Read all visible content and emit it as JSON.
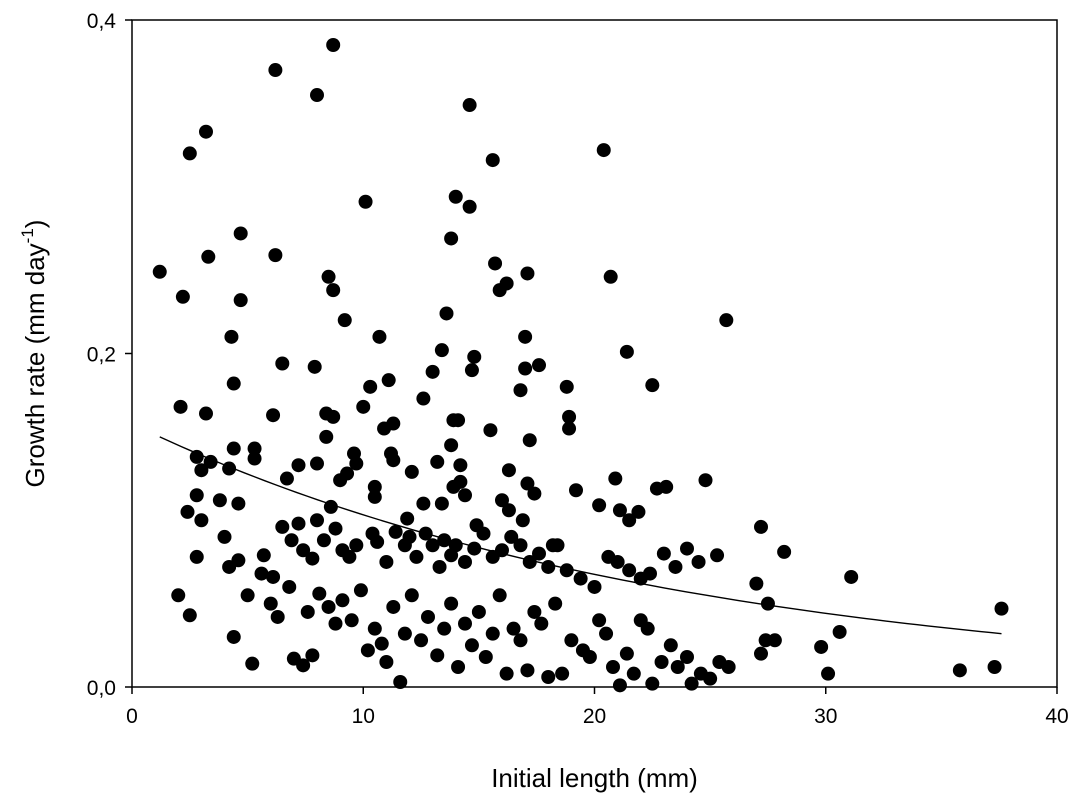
{
  "chart_data": {
    "type": "scatter",
    "title": "",
    "xlabel": "Initial length (mm)",
    "ylabel_main": "Growth rate (mm day",
    "ylabel_sup": "-1",
    "ylabel_close": ")",
    "xlim": [
      0,
      40
    ],
    "ylim": [
      0,
      0.4
    ],
    "x_ticks": [
      {
        "value": 0,
        "label": "0"
      },
      {
        "value": 10,
        "label": "10"
      },
      {
        "value": 20,
        "label": "20"
      },
      {
        "value": 30,
        "label": "30"
      },
      {
        "value": 40,
        "label": "40"
      }
    ],
    "y_ticks": [
      {
        "value": 0,
        "label": "0,0"
      },
      {
        "value": 0.2,
        "label": "0,2"
      },
      {
        "value": 0.4,
        "label": "0,4"
      }
    ],
    "grid": false,
    "legend": "none",
    "marker_color": "#000000",
    "series": [
      {
        "marker": "filled-circle",
        "points": [
          [
            1.2,
            0.249
          ],
          [
            2.2,
            0.234
          ],
          [
            2.5,
            0.32
          ],
          [
            3.2,
            0.333
          ],
          [
            3.3,
            0.258
          ],
          [
            2.1,
            0.168
          ],
          [
            3.2,
            0.164
          ],
          [
            4.7,
            0.272
          ],
          [
            4.7,
            0.232
          ],
          [
            4.3,
            0.21
          ],
          [
            4.4,
            0.182
          ],
          [
            6.2,
            0.37
          ],
          [
            6.2,
            0.259
          ],
          [
            6.1,
            0.163
          ],
          [
            6.5,
            0.194
          ],
          [
            8.0,
            0.355
          ],
          [
            8.7,
            0.385
          ],
          [
            8.5,
            0.246
          ],
          [
            8.7,
            0.238
          ],
          [
            9.2,
            0.22
          ],
          [
            7.9,
            0.192
          ],
          [
            8.4,
            0.164
          ],
          [
            8.7,
            0.162
          ],
          [
            10.1,
            0.291
          ],
          [
            10.0,
            0.168
          ],
          [
            10.3,
            0.18
          ],
          [
            10.7,
            0.21
          ],
          [
            11.1,
            0.184
          ],
          [
            11.3,
            0.158
          ],
          [
            10.9,
            0.155
          ],
          [
            12.6,
            0.173
          ],
          [
            13.0,
            0.189
          ],
          [
            13.4,
            0.202
          ],
          [
            13.6,
            0.224
          ],
          [
            13.8,
            0.269
          ],
          [
            14.0,
            0.294
          ],
          [
            14.6,
            0.288
          ],
          [
            14.6,
            0.349
          ],
          [
            14.7,
            0.19
          ],
          [
            14.8,
            0.198
          ],
          [
            13.9,
            0.16
          ],
          [
            14.1,
            0.16
          ],
          [
            15.6,
            0.316
          ],
          [
            15.7,
            0.254
          ],
          [
            15.9,
            0.238
          ],
          [
            16.2,
            0.242
          ],
          [
            15.5,
            0.154
          ],
          [
            16.8,
            0.178
          ],
          [
            17.0,
            0.21
          ],
          [
            17.0,
            0.191
          ],
          [
            17.1,
            0.248
          ],
          [
            17.6,
            0.193
          ],
          [
            17.2,
            0.148
          ],
          [
            18.8,
            0.18
          ],
          [
            18.9,
            0.162
          ],
          [
            18.9,
            0.155
          ],
          [
            20.4,
            0.322
          ],
          [
            20.7,
            0.246
          ],
          [
            21.4,
            0.201
          ],
          [
            22.5,
            0.181
          ],
          [
            25.7,
            0.22
          ],
          [
            2.8,
            0.138
          ],
          [
            3.0,
            0.13
          ],
          [
            3.4,
            0.135
          ],
          [
            3.8,
            0.112
          ],
          [
            2.8,
            0.115
          ],
          [
            2.4,
            0.105
          ],
          [
            4.4,
            0.143
          ],
          [
            4.2,
            0.131
          ],
          [
            4.6,
            0.11
          ],
          [
            5.3,
            0.143
          ],
          [
            5.3,
            0.137
          ],
          [
            6.7,
            0.125
          ],
          [
            7.2,
            0.133
          ],
          [
            8.0,
            0.134
          ],
          [
            8.4,
            0.15
          ],
          [
            9.0,
            0.124
          ],
          [
            9.3,
            0.128
          ],
          [
            9.6,
            0.14
          ],
          [
            9.7,
            0.134
          ],
          [
            10.5,
            0.114
          ],
          [
            10.5,
            0.12
          ],
          [
            11.2,
            0.14
          ],
          [
            11.3,
            0.136
          ],
          [
            11.9,
            0.101
          ],
          [
            12.1,
            0.129
          ],
          [
            12.6,
            0.11
          ],
          [
            13.2,
            0.135
          ],
          [
            13.4,
            0.11
          ],
          [
            13.8,
            0.145
          ],
          [
            13.9,
            0.12
          ],
          [
            14.2,
            0.133
          ],
          [
            14.2,
            0.123
          ],
          [
            14.4,
            0.115
          ],
          [
            14.9,
            0.097
          ],
          [
            16.0,
            0.112
          ],
          [
            16.3,
            0.106
          ],
          [
            16.3,
            0.13
          ],
          [
            16.9,
            0.1
          ],
          [
            17.1,
            0.122
          ],
          [
            17.4,
            0.116
          ],
          [
            18.2,
            0.085
          ],
          [
            19.2,
            0.118
          ],
          [
            20.2,
            0.109
          ],
          [
            20.9,
            0.125
          ],
          [
            21.1,
            0.106
          ],
          [
            21.5,
            0.1
          ],
          [
            21.9,
            0.105
          ],
          [
            22.7,
            0.119
          ],
          [
            23.1,
            0.12
          ],
          [
            24.8,
            0.124
          ],
          [
            2.8,
            0.078
          ],
          [
            3.0,
            0.1
          ],
          [
            4.0,
            0.09
          ],
          [
            4.2,
            0.072
          ],
          [
            4.6,
            0.076
          ],
          [
            5.7,
            0.079
          ],
          [
            6.1,
            0.066
          ],
          [
            6.5,
            0.096
          ],
          [
            6.9,
            0.088
          ],
          [
            7.2,
            0.098
          ],
          [
            7.4,
            0.082
          ],
          [
            7.8,
            0.077
          ],
          [
            8.0,
            0.1
          ],
          [
            8.3,
            0.088
          ],
          [
            8.6,
            0.108
          ],
          [
            8.8,
            0.095
          ],
          [
            9.1,
            0.082
          ],
          [
            9.4,
            0.078
          ],
          [
            9.7,
            0.085
          ],
          [
            10.4,
            0.092
          ],
          [
            10.6,
            0.087
          ],
          [
            11.0,
            0.075
          ],
          [
            11.4,
            0.093
          ],
          [
            11.8,
            0.085
          ],
          [
            12.0,
            0.09
          ],
          [
            12.3,
            0.078
          ],
          [
            12.7,
            0.092
          ],
          [
            13.0,
            0.085
          ],
          [
            13.3,
            0.072
          ],
          [
            13.5,
            0.088
          ],
          [
            13.8,
            0.079
          ],
          [
            14.0,
            0.085
          ],
          [
            14.4,
            0.075
          ],
          [
            14.8,
            0.083
          ],
          [
            15.2,
            0.092
          ],
          [
            15.6,
            0.078
          ],
          [
            16.0,
            0.082
          ],
          [
            16.4,
            0.09
          ],
          [
            16.8,
            0.085
          ],
          [
            17.2,
            0.075
          ],
          [
            17.6,
            0.08
          ],
          [
            18.0,
            0.072
          ],
          [
            18.4,
            0.085
          ],
          [
            18.8,
            0.07
          ],
          [
            19.4,
            0.065
          ],
          [
            20.0,
            0.06
          ],
          [
            20.6,
            0.078
          ],
          [
            21.0,
            0.075
          ],
          [
            21.5,
            0.07
          ],
          [
            22.0,
            0.065
          ],
          [
            22.4,
            0.068
          ],
          [
            23.0,
            0.08
          ],
          [
            23.5,
            0.072
          ],
          [
            24.0,
            0.083
          ],
          [
            24.5,
            0.075
          ],
          [
            25.3,
            0.079
          ],
          [
            27.2,
            0.096
          ],
          [
            28.2,
            0.081
          ],
          [
            31.1,
            0.066
          ],
          [
            2.0,
            0.055
          ],
          [
            2.5,
            0.043
          ],
          [
            4.4,
            0.03
          ],
          [
            5.0,
            0.055
          ],
          [
            5.2,
            0.014
          ],
          [
            5.6,
            0.068
          ],
          [
            6.0,
            0.05
          ],
          [
            6.3,
            0.042
          ],
          [
            6.8,
            0.06
          ],
          [
            7.0,
            0.017
          ],
          [
            7.4,
            0.013
          ],
          [
            7.6,
            0.045
          ],
          [
            7.8,
            0.019
          ],
          [
            8.1,
            0.056
          ],
          [
            8.5,
            0.048
          ],
          [
            8.8,
            0.038
          ],
          [
            9.1,
            0.052
          ],
          [
            9.5,
            0.04
          ],
          [
            9.9,
            0.058
          ],
          [
            10.2,
            0.022
          ],
          [
            10.5,
            0.035
          ],
          [
            10.8,
            0.026
          ],
          [
            11.0,
            0.015
          ],
          [
            11.3,
            0.048
          ],
          [
            11.6,
            0.003
          ],
          [
            11.8,
            0.032
          ],
          [
            12.1,
            0.055
          ],
          [
            12.5,
            0.028
          ],
          [
            12.8,
            0.042
          ],
          [
            13.2,
            0.019
          ],
          [
            13.5,
            0.035
          ],
          [
            13.8,
            0.05
          ],
          [
            14.1,
            0.012
          ],
          [
            14.4,
            0.038
          ],
          [
            14.7,
            0.025
          ],
          [
            15.0,
            0.045
          ],
          [
            15.3,
            0.018
          ],
          [
            15.6,
            0.032
          ],
          [
            15.9,
            0.055
          ],
          [
            16.2,
            0.008
          ],
          [
            16.5,
            0.035
          ],
          [
            16.8,
            0.028
          ],
          [
            17.1,
            0.01
          ],
          [
            17.4,
            0.045
          ],
          [
            17.7,
            0.038
          ],
          [
            18.0,
            0.006
          ],
          [
            18.3,
            0.05
          ],
          [
            18.6,
            0.008
          ],
          [
            19.0,
            0.028
          ],
          [
            19.5,
            0.022
          ],
          [
            19.8,
            0.018
          ],
          [
            20.2,
            0.04
          ],
          [
            20.5,
            0.032
          ],
          [
            20.8,
            0.012
          ],
          [
            21.1,
            0.001
          ],
          [
            21.4,
            0.02
          ],
          [
            21.7,
            0.008
          ],
          [
            22.0,
            0.04
          ],
          [
            22.3,
            0.035
          ],
          [
            22.5,
            0.002
          ],
          [
            22.9,
            0.015
          ],
          [
            23.3,
            0.025
          ],
          [
            23.6,
            0.012
          ],
          [
            24.0,
            0.018
          ],
          [
            24.2,
            0.002
          ],
          [
            24.6,
            0.008
          ],
          [
            25.0,
            0.005
          ],
          [
            25.4,
            0.015
          ],
          [
            25.8,
            0.012
          ],
          [
            27.2,
            0.02
          ],
          [
            27.4,
            0.028
          ],
          [
            27.8,
            0.028
          ],
          [
            29.8,
            0.024
          ],
          [
            30.1,
            0.008
          ],
          [
            30.6,
            0.033
          ],
          [
            35.8,
            0.01
          ],
          [
            37.3,
            0.012
          ],
          [
            37.6,
            0.047
          ],
          [
            27.0,
            0.062
          ],
          [
            27.5,
            0.05
          ]
        ]
      }
    ],
    "fit_line": {
      "type": "exponential",
      "x_range": [
        1.2,
        37.6
      ],
      "y_start": 0.15,
      "y_end": 0.032
    }
  }
}
